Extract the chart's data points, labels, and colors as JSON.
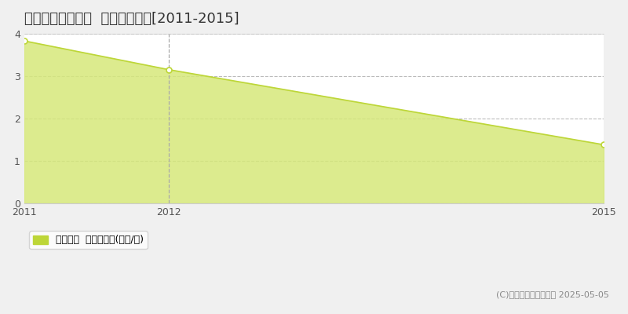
{
  "title": "南秋田郡大潟村東  土地価格推移[2011-2015]",
  "x_values": [
    2011,
    2012,
    2015
  ],
  "y_values": [
    3.83,
    3.15,
    1.38
  ],
  "line_color": "#bdd638",
  "fill_color": "#d6e87a",
  "fill_alpha": 0.85,
  "marker_color": "#ffffff",
  "marker_edge_color": "#bdd638",
  "xlim": [
    2011,
    2015
  ],
  "ylim": [
    0,
    4
  ],
  "yticks": [
    0,
    1,
    2,
    3,
    4
  ],
  "xtick_labels": [
    "2011",
    "2012",
    "2015"
  ],
  "xtick_positions": [
    2011,
    2012,
    2015
  ],
  "grid_color": "#bbbbbb",
  "plot_bg_color": "#ffffff",
  "fig_bg_color": "#f0f0f0",
  "legend_label": "土地価格  平均啶単価(万円/啶)",
  "legend_color": "#bdd638",
  "copyright_text": "(C)土地価格ドットコム 2025-05-05",
  "vline_x": 2012,
  "vline_color": "#aaaaaa",
  "title_fontsize": 13,
  "tick_fontsize": 9,
  "legend_fontsize": 9,
  "copyright_fontsize": 8
}
